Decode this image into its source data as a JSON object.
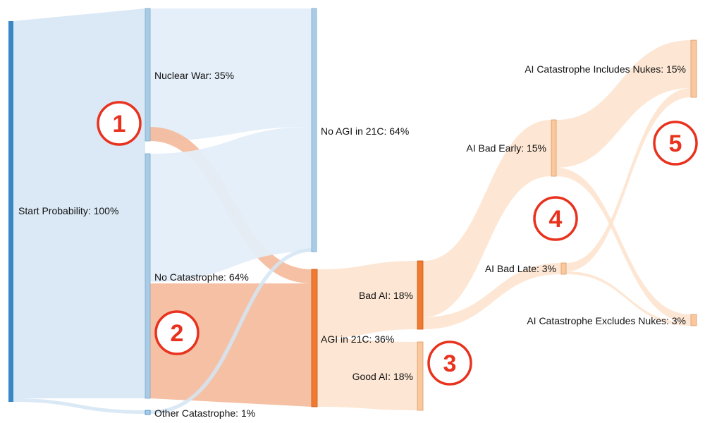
{
  "colors": {
    "start": "#3a87c8",
    "blue_node": "#a9cbe6",
    "blue_flow": "#d3e5f3",
    "blue_flow_light": "#e4eef9",
    "orange_dark": "#f07a30",
    "orange_flow": "#f4b99a",
    "peach_node": "#fbc89e",
    "peach_flow": "#fde3cc",
    "marker": "#e8321e"
  },
  "nodes": {
    "start": {
      "label": "Start Probability: 100%",
      "value": 100
    },
    "nuclear_war": {
      "label": "Nuclear War: 35%",
      "value": 35
    },
    "no_catastrophe": {
      "label": "No Catastrophe: 64%",
      "value": 64
    },
    "other_catastrophe": {
      "label": "Other Catastrophe: 1%",
      "value": 1
    },
    "no_agi": {
      "label": "No AGI in 21C: 64%",
      "value": 64
    },
    "agi": {
      "label": "AGI in 21C: 36%",
      "value": 36
    },
    "bad_ai": {
      "label": "Bad AI: 18%",
      "value": 18
    },
    "good_ai": {
      "label": "Good AI: 18%",
      "value": 18
    },
    "ai_bad_early": {
      "label": "AI Bad Early: 15%",
      "value": 15
    },
    "ai_bad_late": {
      "label": "AI Bad Late: 3%",
      "value": 3
    },
    "includes_nukes": {
      "label": "AI Catastrophe Includes Nukes: 15%",
      "value": 15
    },
    "excludes_nukes": {
      "label": "AI Catastrophe Excludes Nukes: 3%",
      "value": 3
    }
  },
  "markers": [
    "1",
    "2",
    "3",
    "4",
    "5"
  ]
}
